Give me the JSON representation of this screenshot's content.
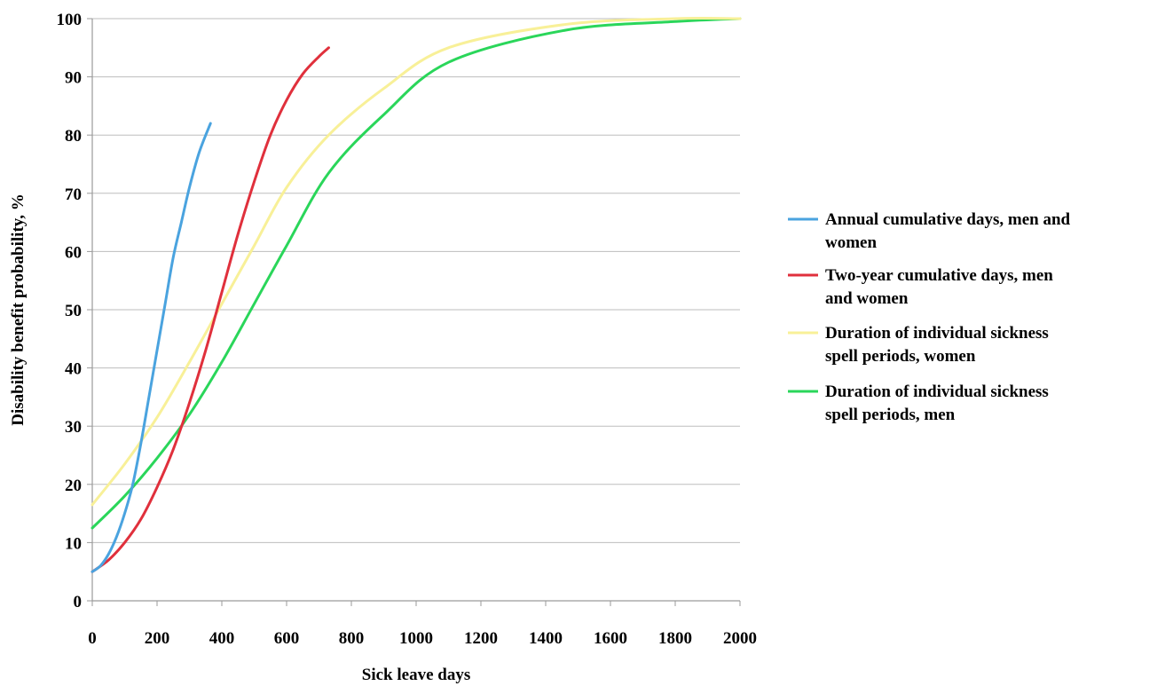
{
  "chart_data": {
    "type": "line",
    "title": "",
    "xlabel": "Sick leave days",
    "ylabel": "Disability benefit probability, %",
    "xlim": [
      0,
      2000
    ],
    "ylim": [
      0,
      100
    ],
    "xticks": [
      0,
      200,
      400,
      600,
      800,
      1000,
      1200,
      1400,
      1600,
      1800,
      2000
    ],
    "yticks": [
      0,
      10,
      20,
      30,
      40,
      50,
      60,
      70,
      80,
      90,
      100
    ],
    "grid": "horizontal",
    "legend_position": "right",
    "series": [
      {
        "name": "Annual cumulative days, men and women",
        "legend_lines": [
          "Annual cumulative days, men and",
          "women"
        ],
        "color": "#4aa3df",
        "points": [
          [
            0,
            5
          ],
          [
            25,
            6
          ],
          [
            50,
            8
          ],
          [
            75,
            11
          ],
          [
            100,
            15
          ],
          [
            125,
            20
          ],
          [
            150,
            27
          ],
          [
            175,
            35
          ],
          [
            200,
            43
          ],
          [
            225,
            51
          ],
          [
            250,
            59
          ],
          [
            275,
            65
          ],
          [
            300,
            71
          ],
          [
            330,
            77
          ],
          [
            365,
            82
          ]
        ]
      },
      {
        "name": "Two-year cumulative days, men and women",
        "legend_lines": [
          "Two-year cumulative days, men",
          "and women"
        ],
        "color": "#e0303c",
        "points": [
          [
            0,
            5
          ],
          [
            50,
            7
          ],
          [
            100,
            10
          ],
          [
            150,
            14
          ],
          [
            200,
            19.5
          ],
          [
            250,
            26
          ],
          [
            300,
            34
          ],
          [
            350,
            43
          ],
          [
            400,
            53
          ],
          [
            450,
            63
          ],
          [
            500,
            72
          ],
          [
            550,
            80
          ],
          [
            600,
            86
          ],
          [
            650,
            90.5
          ],
          [
            700,
            93.5
          ],
          [
            730,
            95
          ]
        ]
      },
      {
        "name": "Duration of individual sickness spell periods, women",
        "legend_lines": [
          "Duration of individual sickness",
          "spell periods, women"
        ],
        "color": "#f8f098",
        "points": [
          [
            0,
            16.5
          ],
          [
            100,
            23.5
          ],
          [
            200,
            31.5
          ],
          [
            300,
            41
          ],
          [
            400,
            51
          ],
          [
            500,
            61
          ],
          [
            600,
            71
          ],
          [
            730,
            80
          ],
          [
            900,
            88
          ],
          [
            1100,
            95
          ],
          [
            1460,
            99
          ],
          [
            1800,
            100
          ],
          [
            2000,
            100
          ]
        ]
      },
      {
        "name": "Duration of individual sickness spell periods, men",
        "legend_lines": [
          "Duration of individual sickness",
          "spell periods, men"
        ],
        "color": "#2ad65a",
        "points": [
          [
            0,
            12.5
          ],
          [
            100,
            18
          ],
          [
            200,
            24.5
          ],
          [
            300,
            32
          ],
          [
            400,
            41
          ],
          [
            500,
            51
          ],
          [
            600,
            61
          ],
          [
            730,
            73.5
          ],
          [
            900,
            83.5
          ],
          [
            1100,
            92.5
          ],
          [
            1460,
            98
          ],
          [
            1800,
            99.5
          ],
          [
            2000,
            100
          ]
        ]
      }
    ]
  }
}
